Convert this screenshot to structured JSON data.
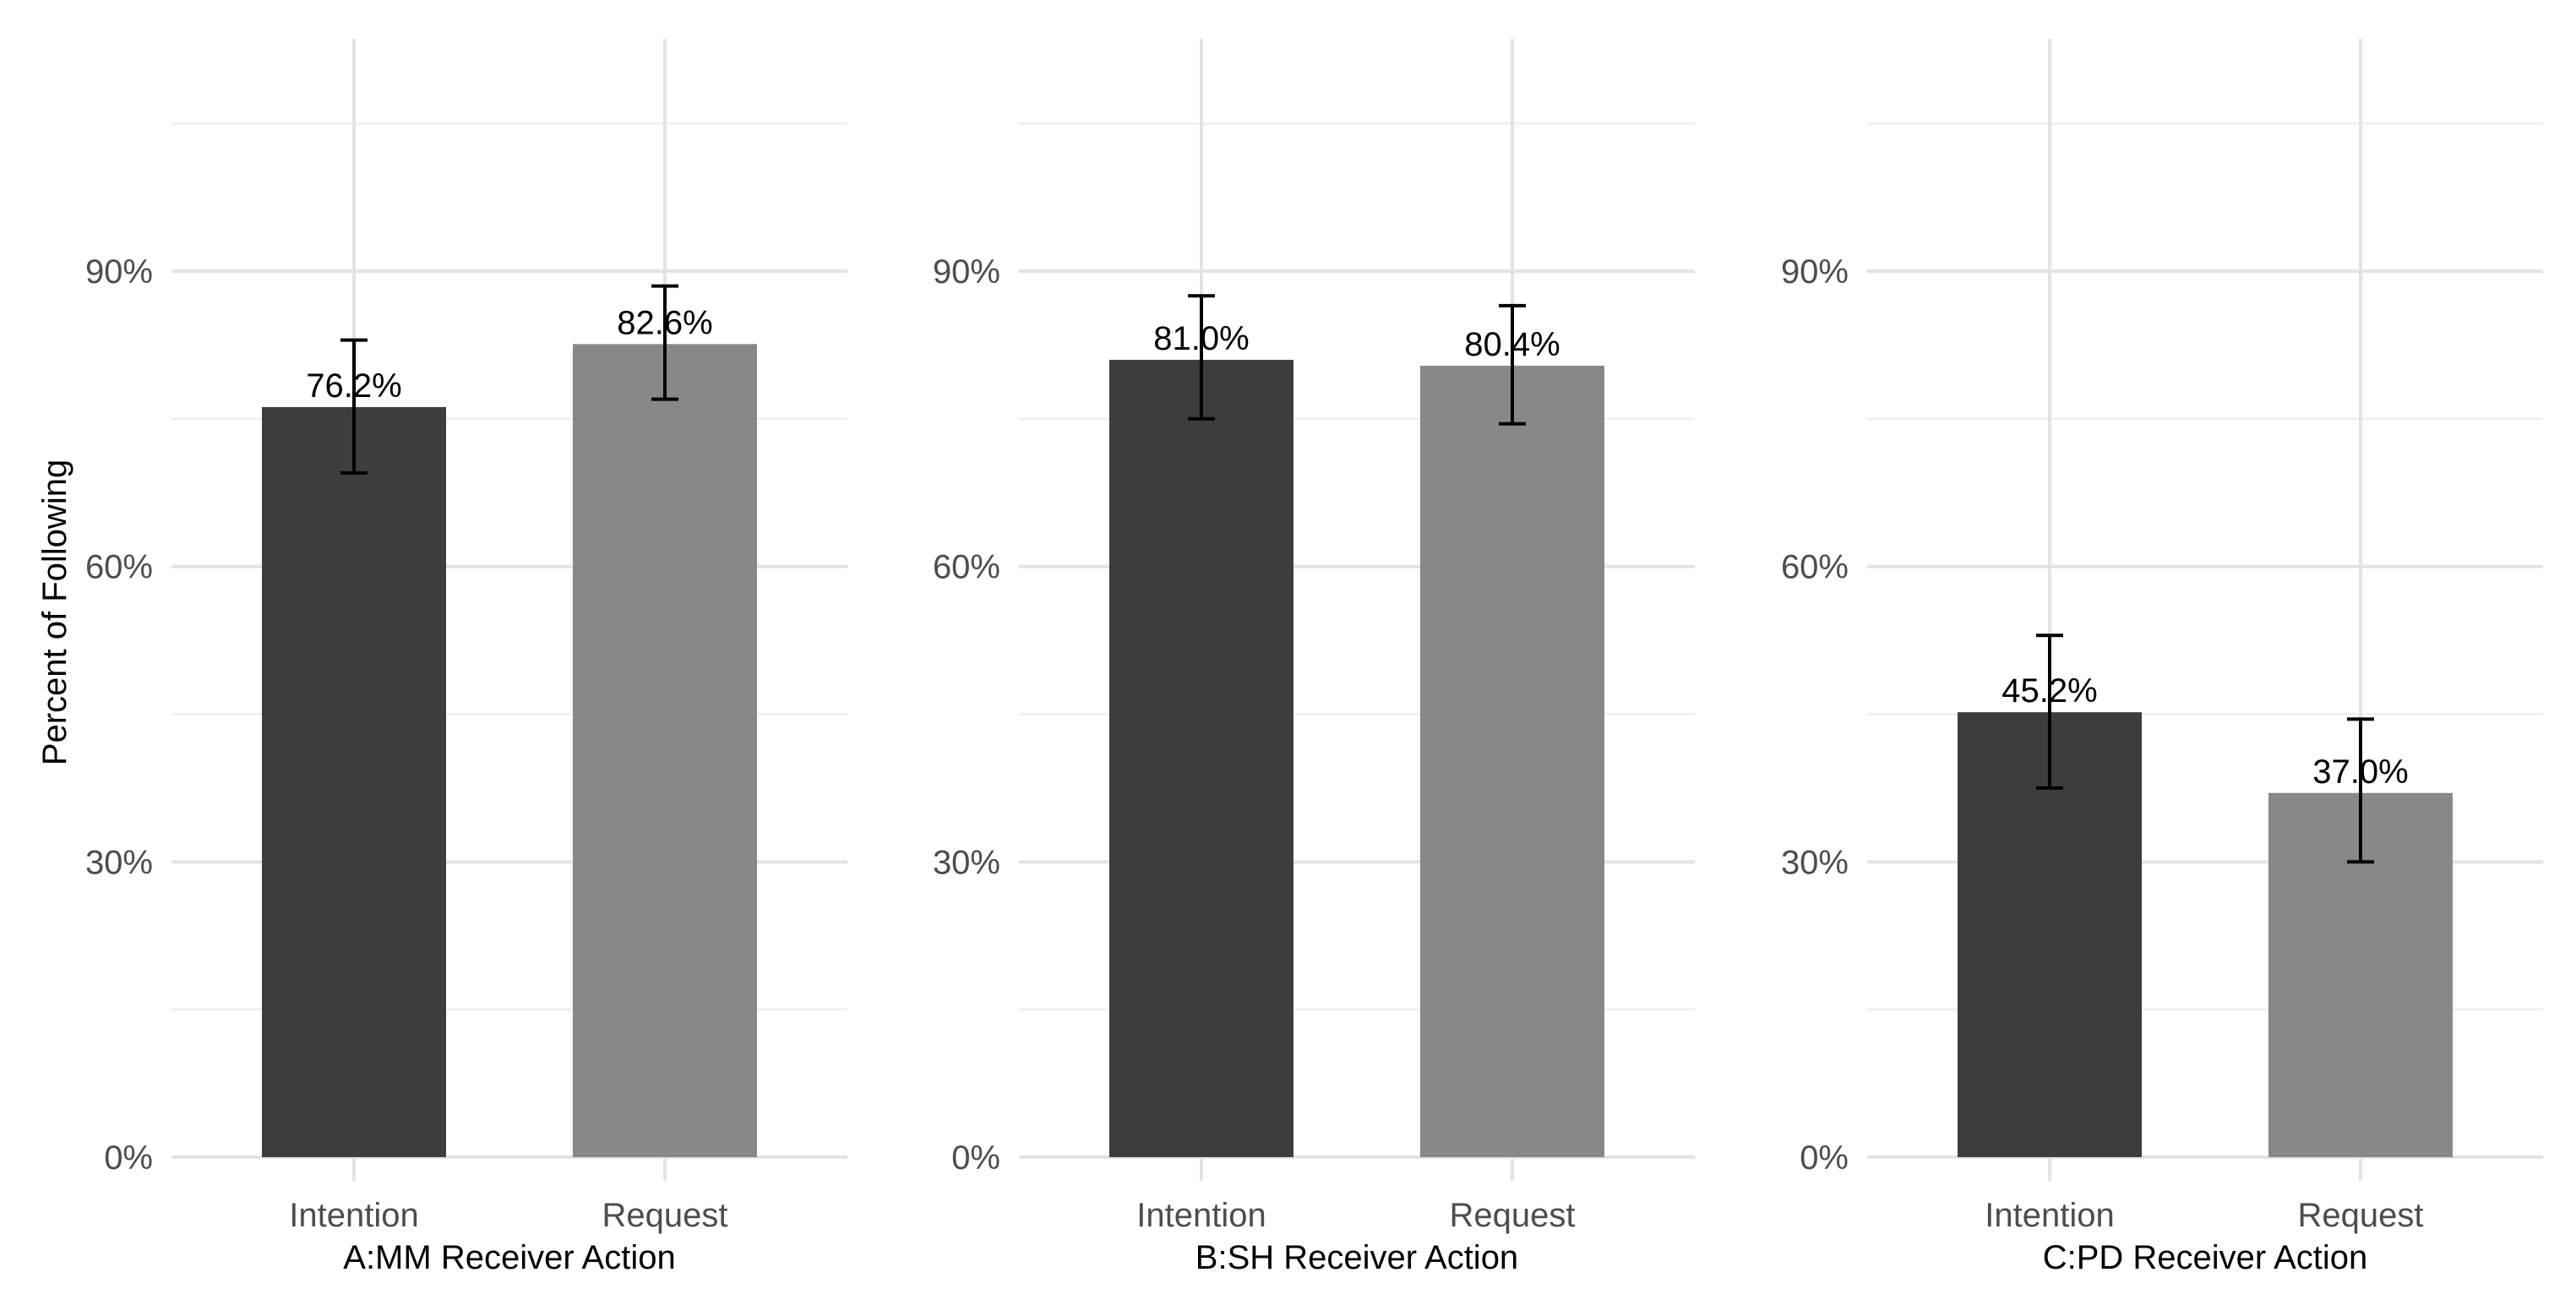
{
  "chart_data": {
    "type": "bar",
    "ylabel": "Percent of Following",
    "ylim": [
      0,
      110
    ],
    "yticks": [
      0,
      30,
      60,
      90
    ],
    "yticks_labels": [
      "0%",
      "30%",
      "60%",
      "90%"
    ],
    "grid": true,
    "legend": "none",
    "colors": {
      "Intention": "#3d3d3d",
      "Request": "#888888"
    },
    "panels": [
      {
        "xlabel": "A:MM Receiver Action",
        "categories": [
          "Intention",
          "Request"
        ],
        "values": [
          76.2,
          82.6
        ],
        "labels": [
          "76.2%",
          "82.6%"
        ],
        "error_low": [
          69.5,
          77.0
        ],
        "error_high": [
          83.0,
          88.5
        ]
      },
      {
        "xlabel": "B:SH Receiver Action",
        "categories": [
          "Intention",
          "Request"
        ],
        "values": [
          81.0,
          80.4
        ],
        "labels": [
          "81.0%",
          "80.4%"
        ],
        "error_low": [
          75.0,
          74.5
        ],
        "error_high": [
          87.5,
          86.5
        ]
      },
      {
        "xlabel": "C:PD Receiver Action",
        "categories": [
          "Intention",
          "Request"
        ],
        "values": [
          45.2,
          37.0
        ],
        "labels": [
          "45.2%",
          "37.0%"
        ],
        "error_low": [
          37.5,
          30.0
        ],
        "error_high": [
          53.0,
          44.5
        ]
      }
    ]
  }
}
